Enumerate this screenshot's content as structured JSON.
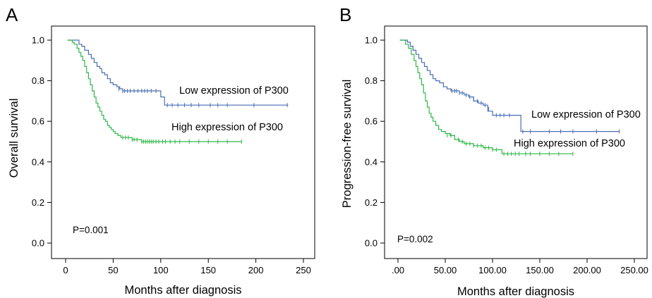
{
  "chart_data": [
    {
      "type": "line",
      "subtype": "kaplan-meier",
      "panel": "A",
      "xlabel": "Months after diagnosis",
      "ylabel": "Overall survival",
      "xlim": [
        0,
        250
      ],
      "ylim": [
        0,
        1.0
      ],
      "x_ticks": [
        0,
        50,
        100,
        150,
        200,
        250
      ],
      "x_tick_labels": [
        "0",
        "50",
        "100",
        "150",
        "200",
        "250"
      ],
      "y_ticks": [
        0,
        0.2,
        0.4,
        0.6,
        0.8,
        1.0
      ],
      "y_tick_labels": [
        "0.0",
        "0.2",
        "0.4",
        "0.6",
        "0.8",
        "1.0"
      ],
      "grid": false,
      "annotation": "P=0.001",
      "series": [
        {
          "name": "Low expression of P300",
          "color": "#4a6fb5",
          "x": [
            2,
            10,
            14,
            17,
            20,
            24,
            27,
            30,
            33,
            36,
            38,
            41,
            44,
            47,
            50,
            54,
            57,
            60,
            100,
            104,
            234
          ],
          "y": [
            1.0,
            1.0,
            0.98,
            0.97,
            0.95,
            0.93,
            0.91,
            0.89,
            0.87,
            0.86,
            0.84,
            0.83,
            0.81,
            0.79,
            0.78,
            0.77,
            0.76,
            0.75,
            0.72,
            0.68,
            0.68
          ],
          "censor_x": [
            56,
            60,
            62,
            65,
            68,
            72,
            76,
            80,
            83,
            86,
            90,
            95,
            107,
            112,
            118,
            125,
            132,
            140,
            152,
            160,
            170,
            198,
            233
          ],
          "censor_y": [
            0.76,
            0.75,
            0.75,
            0.75,
            0.75,
            0.75,
            0.75,
            0.75,
            0.75,
            0.75,
            0.75,
            0.75,
            0.68,
            0.68,
            0.68,
            0.68,
            0.68,
            0.68,
            0.68,
            0.68,
            0.68,
            0.68,
            0.68
          ]
        },
        {
          "name": "High expression of P300",
          "color": "#2fb84a",
          "x": [
            2,
            7,
            9,
            12,
            14,
            16,
            18,
            20,
            22,
            24,
            26,
            28,
            30,
            32,
            34,
            36,
            38,
            40,
            42,
            44,
            46,
            48,
            50,
            52,
            55,
            58,
            60,
            65,
            70,
            75,
            80,
            185
          ],
          "y": [
            1.0,
            0.99,
            0.98,
            0.96,
            0.94,
            0.92,
            0.9,
            0.87,
            0.84,
            0.81,
            0.78,
            0.75,
            0.72,
            0.69,
            0.67,
            0.65,
            0.63,
            0.61,
            0.6,
            0.58,
            0.57,
            0.56,
            0.55,
            0.54,
            0.53,
            0.52,
            0.52,
            0.52,
            0.51,
            0.51,
            0.5,
            0.5
          ],
          "censor_x": [
            60,
            63,
            66,
            70,
            72,
            75,
            80,
            82,
            84,
            86,
            88,
            90,
            92,
            95,
            98,
            102,
            105,
            110,
            115,
            120,
            130,
            140,
            150,
            160,
            170,
            185
          ],
          "censor_y": [
            0.52,
            0.52,
            0.52,
            0.51,
            0.51,
            0.51,
            0.5,
            0.5,
            0.5,
            0.5,
            0.5,
            0.5,
            0.5,
            0.5,
            0.5,
            0.5,
            0.5,
            0.5,
            0.5,
            0.5,
            0.5,
            0.5,
            0.5,
            0.5,
            0.5,
            0.5
          ]
        }
      ]
    },
    {
      "type": "line",
      "subtype": "kaplan-meier",
      "panel": "B",
      "xlabel": "Months after diagnosis",
      "ylabel": "Progression-free survival",
      "xlim": [
        0,
        250
      ],
      "ylim": [
        0,
        1.0
      ],
      "x_ticks": [
        0,
        50,
        100,
        150,
        200,
        250
      ],
      "x_tick_labels": [
        ".00",
        "50.00",
        "100.00",
        "150.00",
        "200.00",
        "250.00"
      ],
      "y_ticks": [
        0,
        0.2,
        0.4,
        0.6,
        0.8,
        1.0
      ],
      "y_tick_labels": [
        "0.0",
        "0.2",
        "0.4",
        "0.6",
        "0.8",
        "1.0"
      ],
      "grid": false,
      "annotation": "P=0.002",
      "series": [
        {
          "name": "Low expression of P300",
          "color": "#4a6fb5",
          "x": [
            2,
            10,
            13,
            16,
            19,
            22,
            25,
            28,
            31,
            34,
            37,
            40,
            44,
            48,
            52,
            56,
            60,
            65,
            70,
            75,
            80,
            85,
            90,
            95,
            100,
            130,
            234
          ],
          "y": [
            1.0,
            0.99,
            0.97,
            0.95,
            0.93,
            0.91,
            0.89,
            0.87,
            0.85,
            0.83,
            0.81,
            0.8,
            0.79,
            0.77,
            0.76,
            0.75,
            0.75,
            0.74,
            0.73,
            0.72,
            0.7,
            0.69,
            0.68,
            0.65,
            0.63,
            0.55,
            0.55
          ],
          "censor_x": [
            57,
            60,
            62,
            65,
            68,
            72,
            76,
            80,
            84,
            88,
            92,
            96,
            100,
            104,
            108,
            112,
            118,
            132,
            140,
            160,
            172,
            185,
            210,
            234
          ],
          "censor_y": [
            0.75,
            0.75,
            0.75,
            0.74,
            0.74,
            0.73,
            0.72,
            0.71,
            0.7,
            0.69,
            0.68,
            0.66,
            0.64,
            0.63,
            0.63,
            0.63,
            0.63,
            0.55,
            0.55,
            0.55,
            0.55,
            0.55,
            0.55,
            0.55
          ]
        },
        {
          "name": "High expression of P300",
          "color": "#2fb84a",
          "x": [
            2,
            8,
            11,
            14,
            17,
            19,
            21,
            23,
            25,
            27,
            29,
            31,
            33,
            35,
            37,
            40,
            43,
            46,
            50,
            55,
            60,
            65,
            70,
            80,
            90,
            100,
            110,
            185
          ],
          "y": [
            1.0,
            0.98,
            0.96,
            0.93,
            0.9,
            0.87,
            0.84,
            0.81,
            0.78,
            0.74,
            0.7,
            0.67,
            0.64,
            0.62,
            0.6,
            0.58,
            0.56,
            0.55,
            0.54,
            0.53,
            0.51,
            0.5,
            0.49,
            0.48,
            0.47,
            0.46,
            0.44,
            0.44
          ],
          "censor_x": [
            52,
            56,
            60,
            64,
            68,
            72,
            76,
            80,
            84,
            88,
            92,
            96,
            100,
            104,
            112,
            116,
            120,
            124,
            128,
            135,
            140,
            150,
            160,
            170,
            185
          ],
          "censor_y": [
            0.53,
            0.53,
            0.52,
            0.51,
            0.5,
            0.49,
            0.49,
            0.48,
            0.48,
            0.48,
            0.47,
            0.47,
            0.46,
            0.46,
            0.44,
            0.44,
            0.44,
            0.44,
            0.44,
            0.44,
            0.44,
            0.44,
            0.44,
            0.44,
            0.44
          ]
        }
      ]
    }
  ]
}
